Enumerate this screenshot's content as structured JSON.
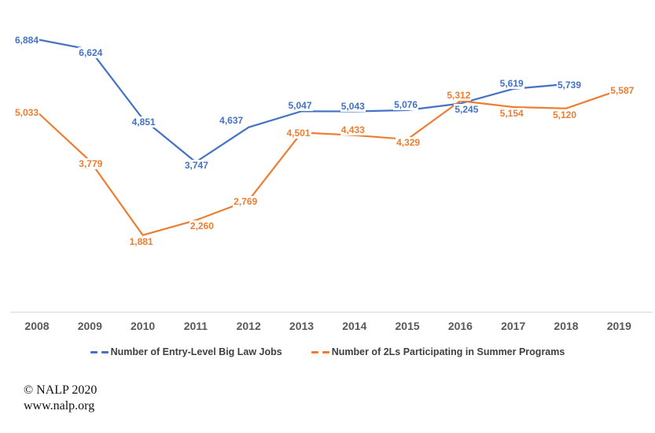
{
  "chart_data": {
    "type": "line",
    "x": [
      2008,
      2009,
      2010,
      2011,
      2012,
      2013,
      2014,
      2015,
      2016,
      2017,
      2018,
      2019
    ],
    "series": [
      {
        "name": "Number of Entry-Level Big Law Jobs",
        "color": "#4472C4",
        "values": [
          6884,
          6624,
          4851,
          3747,
          4637,
          5047,
          5043,
          5076,
          5245,
          5619,
          5739,
          null
        ],
        "label_pos": [
          "left",
          "belowtight",
          "belowtight",
          "belowtight",
          "leftabove",
          "above",
          "above",
          "above",
          "belowright",
          "above",
          "right"
        ]
      },
      {
        "name": "Number of 2Ls Participating in Summer Programs",
        "color": "#ED7D31",
        "values": [
          5033,
          3779,
          1881,
          2260,
          2769,
          4501,
          4433,
          4329,
          5312,
          5154,
          5120,
          5587
        ],
        "label_pos": [
          "left",
          "belowtight",
          "below",
          "belowright",
          "on",
          "on",
          "above",
          "belowtight",
          "above",
          "below",
          "below",
          "right"
        ]
      }
    ],
    "title": "",
    "xlabel": "",
    "ylabel": "",
    "grid": false,
    "y_axis_visible": false,
    "data_labels_visible": true,
    "legend_position": "bottom",
    "axis_line_color": "#D9D9D9",
    "tick_label_color": "#595959"
  },
  "legend": {
    "items": [
      {
        "label": "Number of Entry-Level Big Law Jobs",
        "color": "#4472C4"
      },
      {
        "label": "Number of 2Ls Participating in Summer Programs",
        "color": "#ED7D31"
      }
    ]
  },
  "footer": {
    "copyright": "© NALP 2020",
    "website": "www.nalp.org"
  }
}
